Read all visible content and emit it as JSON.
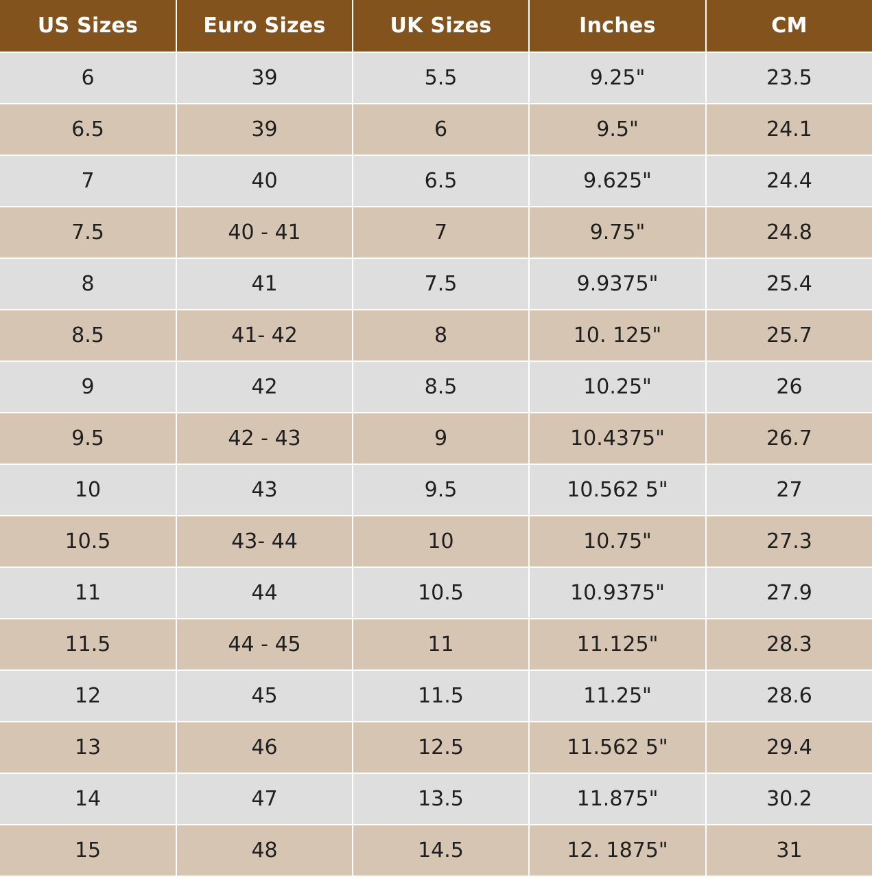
{
  "table": {
    "headers": [
      "US Sizes",
      "Euro Sizes",
      "UK Sizes",
      "Inches",
      "CM"
    ],
    "rows": [
      [
        "6",
        "39",
        "5.5",
        "9.25\"",
        "23.5"
      ],
      [
        "6.5",
        "39",
        "6",
        "9.5\"",
        "24.1"
      ],
      [
        "7",
        "40",
        "6.5",
        "9.625\"",
        "24.4"
      ],
      [
        "7.5",
        "40 - 41",
        "7",
        "9.75\"",
        "24.8"
      ],
      [
        "8",
        "41",
        "7.5",
        "9.9375\"",
        "25.4"
      ],
      [
        "8.5",
        "41- 42",
        "8",
        "10. 125\"",
        "25.7"
      ],
      [
        "9",
        "42",
        "8.5",
        "10.25\"",
        "26"
      ],
      [
        "9.5",
        "42 - 43",
        "9",
        "10.4375\"",
        "26.7"
      ],
      [
        "10",
        "43",
        "9.5",
        "10.562 5\"",
        "27"
      ],
      [
        "10.5",
        "43- 44",
        "10",
        "10.75\"",
        "27.3"
      ],
      [
        "11",
        "44",
        "10.5",
        "10.9375\"",
        "27.9"
      ],
      [
        "11.5",
        "44 - 45",
        "11",
        "11.125\"",
        "28.3"
      ],
      [
        "12",
        "45",
        "11.5",
        "11.25\"",
        "28.6"
      ],
      [
        "13",
        "46",
        "12.5",
        "11.562 5\"",
        "29.4"
      ],
      [
        "14",
        "47",
        "13.5",
        "11.875\"",
        "30.2"
      ],
      [
        "15",
        "48",
        "14.5",
        "12. 1875\"",
        "31"
      ]
    ]
  },
  "colors": {
    "header_bg": "#83531e",
    "header_text": "#ffffff",
    "row_odd_bg": "#dededf",
    "row_even_bg": "#d5c5b2",
    "cell_text": "#1f1f1f",
    "divider": "#ffffff"
  }
}
